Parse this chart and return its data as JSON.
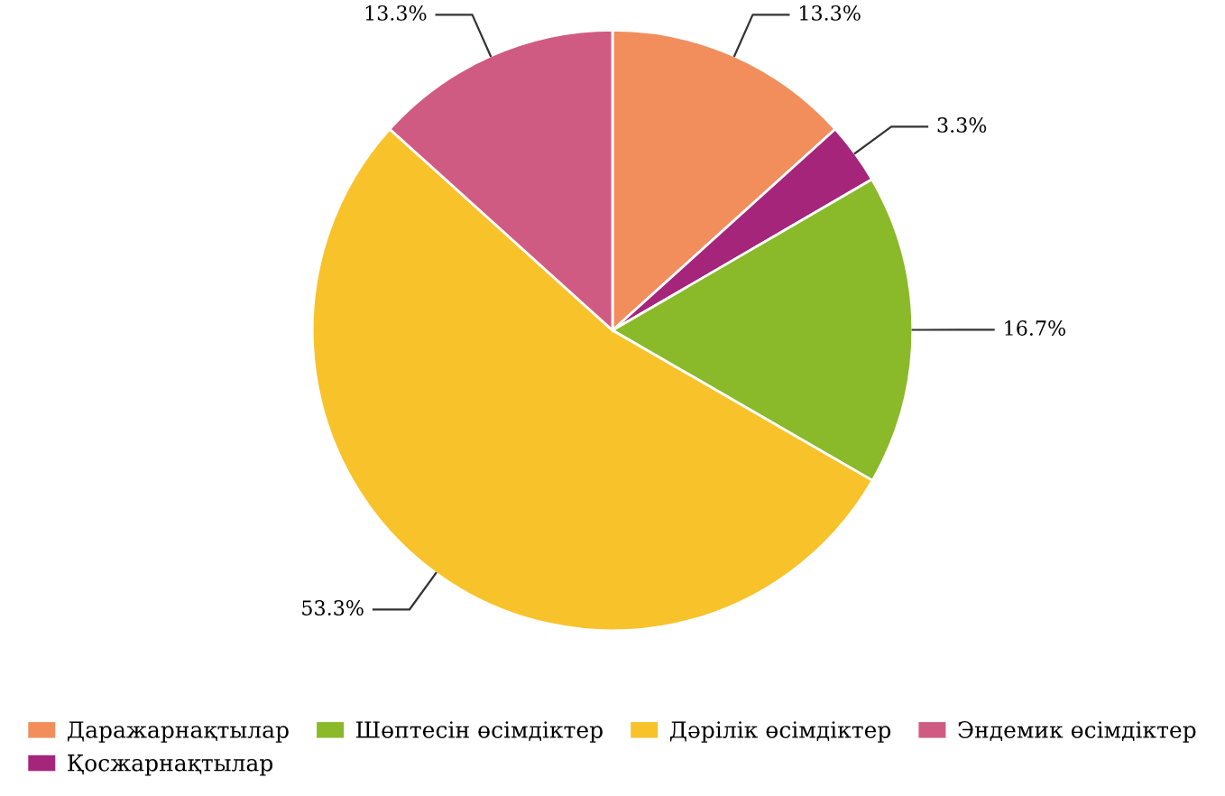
{
  "chart_data": {
    "type": "pie",
    "categories": [
      "Даражарнақтылар",
      "Қосжарнақтылар",
      "Шөптесін өсімдіктер",
      "Дәрілік өсімдіктер",
      "Эндемик өсімдіктер"
    ],
    "values": [
      13.3,
      3.3,
      16.7,
      53.3,
      13.3
    ],
    "value_labels": [
      "13.3%",
      "3.3%",
      "16.7%",
      "53.3%",
      "13.3%"
    ],
    "colors": [
      "#f28e5c",
      "#a5257a",
      "#8ab92a",
      "#f8c22a",
      "#cf5b82"
    ],
    "legend": "bottom"
  }
}
